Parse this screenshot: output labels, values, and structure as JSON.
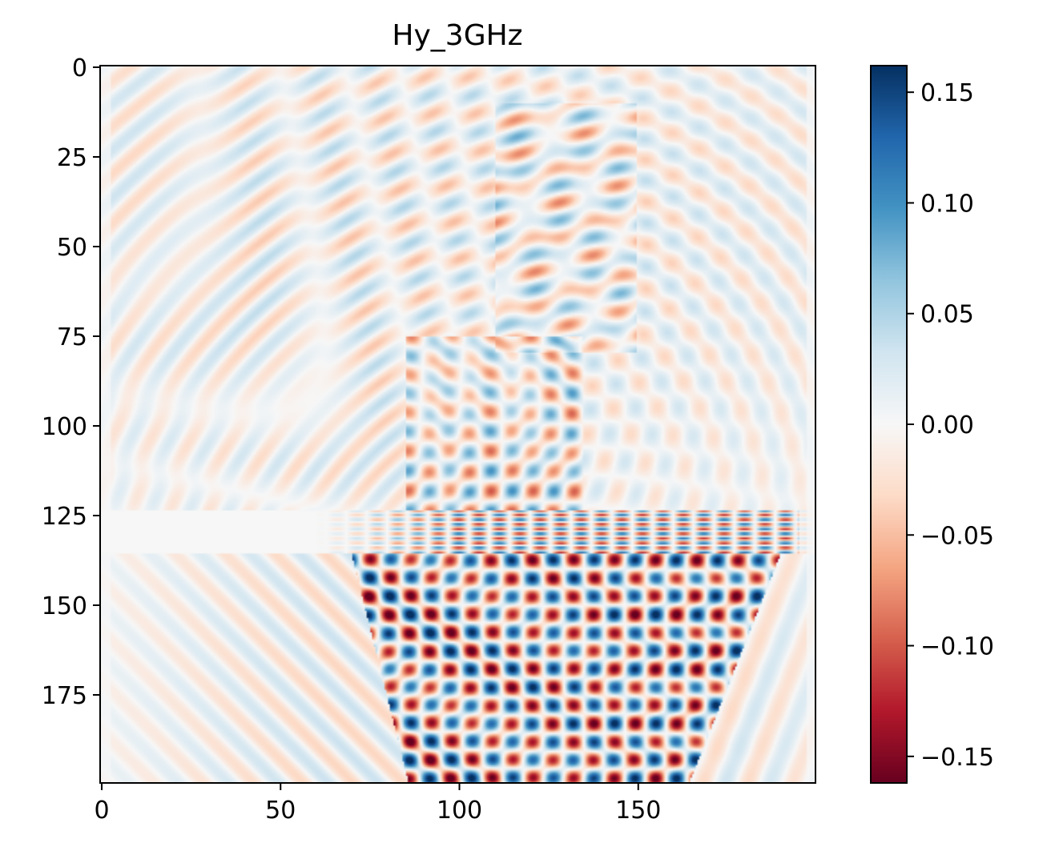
{
  "chart_data": {
    "type": "heatmap",
    "title": "Hy_3GHz",
    "xlabel": "",
    "ylabel": "",
    "x_range": [
      0,
      200
    ],
    "y_range": [
      0,
      200
    ],
    "y_axis_inverted": true,
    "x_ticks": [
      0,
      50,
      100,
      150
    ],
    "x_tick_labels": [
      "0",
      "50",
      "100",
      "150"
    ],
    "y_ticks": [
      0,
      25,
      50,
      75,
      100,
      125,
      150,
      175
    ],
    "y_tick_labels": [
      "0",
      "25",
      "50",
      "75",
      "100",
      "125",
      "150",
      "175"
    ],
    "colorbar": {
      "colormap": "RdBu",
      "min": -0.162,
      "max": 0.162,
      "ticks": [
        0.15,
        0.1,
        0.05,
        0.0,
        -0.05,
        -0.1,
        -0.15
      ],
      "tick_labels": [
        "0.15",
        "0.10",
        "0.05",
        "0.00",
        "−0.05",
        "−0.10",
        "−0.15"
      ],
      "low_color": "#67001f",
      "mid_color": "#f7f7f7",
      "high_color": "#053061"
    },
    "grid": false,
    "legend": "none"
  }
}
